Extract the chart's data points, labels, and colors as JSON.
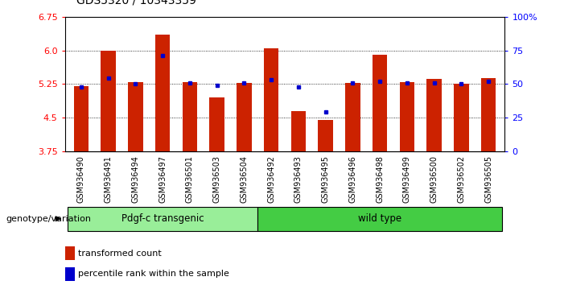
{
  "title": "GDS5320 / 10343359",
  "samples": [
    "GSM936490",
    "GSM936491",
    "GSM936494",
    "GSM936497",
    "GSM936501",
    "GSM936503",
    "GSM936504",
    "GSM936492",
    "GSM936493",
    "GSM936495",
    "GSM936496",
    "GSM936498",
    "GSM936499",
    "GSM936500",
    "GSM936502",
    "GSM936505"
  ],
  "red_bar_top": [
    5.21,
    6.0,
    5.29,
    6.35,
    5.3,
    4.95,
    5.27,
    6.05,
    4.65,
    4.45,
    5.27,
    5.9,
    5.3,
    5.36,
    5.25,
    5.38
  ],
  "blue_dot_y": [
    5.19,
    5.38,
    5.25,
    5.89,
    5.27,
    5.22,
    5.27,
    5.35,
    5.18,
    4.62,
    5.27,
    5.32,
    5.28,
    5.28,
    5.25,
    5.32
  ],
  "ymin": 3.75,
  "ymax": 6.75,
  "yticks_left": [
    3.75,
    4.5,
    5.25,
    6.0,
    6.75
  ],
  "yticks_right": [
    0,
    25,
    50,
    75,
    100
  ],
  "bar_color": "#cc2200",
  "dot_color": "#0000cc",
  "background_color": "#ffffff",
  "group1_label": "Pdgf-c transgenic",
  "group2_label": "wild type",
  "group1_indices": [
    0,
    1,
    2,
    3,
    4,
    5,
    6
  ],
  "group2_indices": [
    7,
    8,
    9,
    10,
    11,
    12,
    13,
    14,
    15
  ],
  "group1_color": "#99ee99",
  "group2_color": "#44cc44",
  "legend_red": "transformed count",
  "legend_blue": "percentile rank within the sample",
  "xlabel_left": "genotype/variation"
}
